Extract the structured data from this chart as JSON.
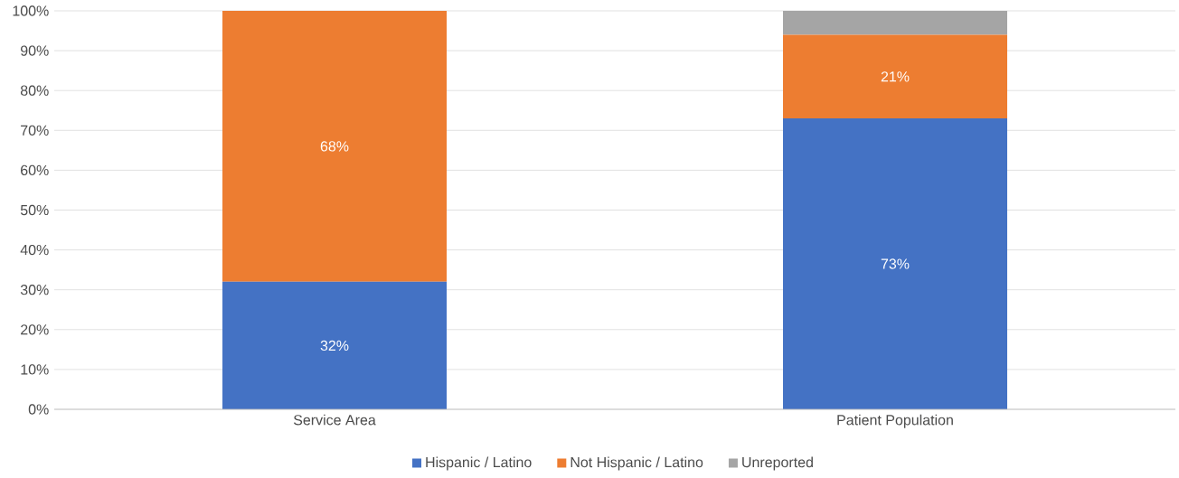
{
  "chart_data": {
    "type": "bar",
    "stacked": true,
    "categories": [
      "Service Area",
      "Patient Population"
    ],
    "series": [
      {
        "name": "Hispanic / Latino",
        "color": "#4472c4",
        "values": [
          32,
          73
        ],
        "value_labels": [
          "32%",
          "73%"
        ]
      },
      {
        "name": "Not Hispanic / Latino",
        "color": "#ed7d31",
        "values": [
          68,
          21
        ],
        "value_labels": [
          "68%",
          "21%"
        ]
      },
      {
        "name": "Unreported",
        "color": "#a5a5a5",
        "values": [
          null,
          6
        ],
        "value_labels": [
          null,
          null
        ]
      }
    ],
    "ylim": [
      0,
      100
    ],
    "yticks": [
      {
        "value": 0,
        "label": "0%"
      },
      {
        "value": 10,
        "label": "10%"
      },
      {
        "value": 20,
        "label": "20%"
      },
      {
        "value": 30,
        "label": "30%"
      },
      {
        "value": 40,
        "label": "40%"
      },
      {
        "value": 50,
        "label": "50%"
      },
      {
        "value": 60,
        "label": "60%"
      },
      {
        "value": 70,
        "label": "70%"
      },
      {
        "value": 80,
        "label": "80%"
      },
      {
        "value": 90,
        "label": "90%"
      },
      {
        "value": 100,
        "label": "100%"
      }
    ],
    "grid": "y",
    "legend": "bottom"
  }
}
